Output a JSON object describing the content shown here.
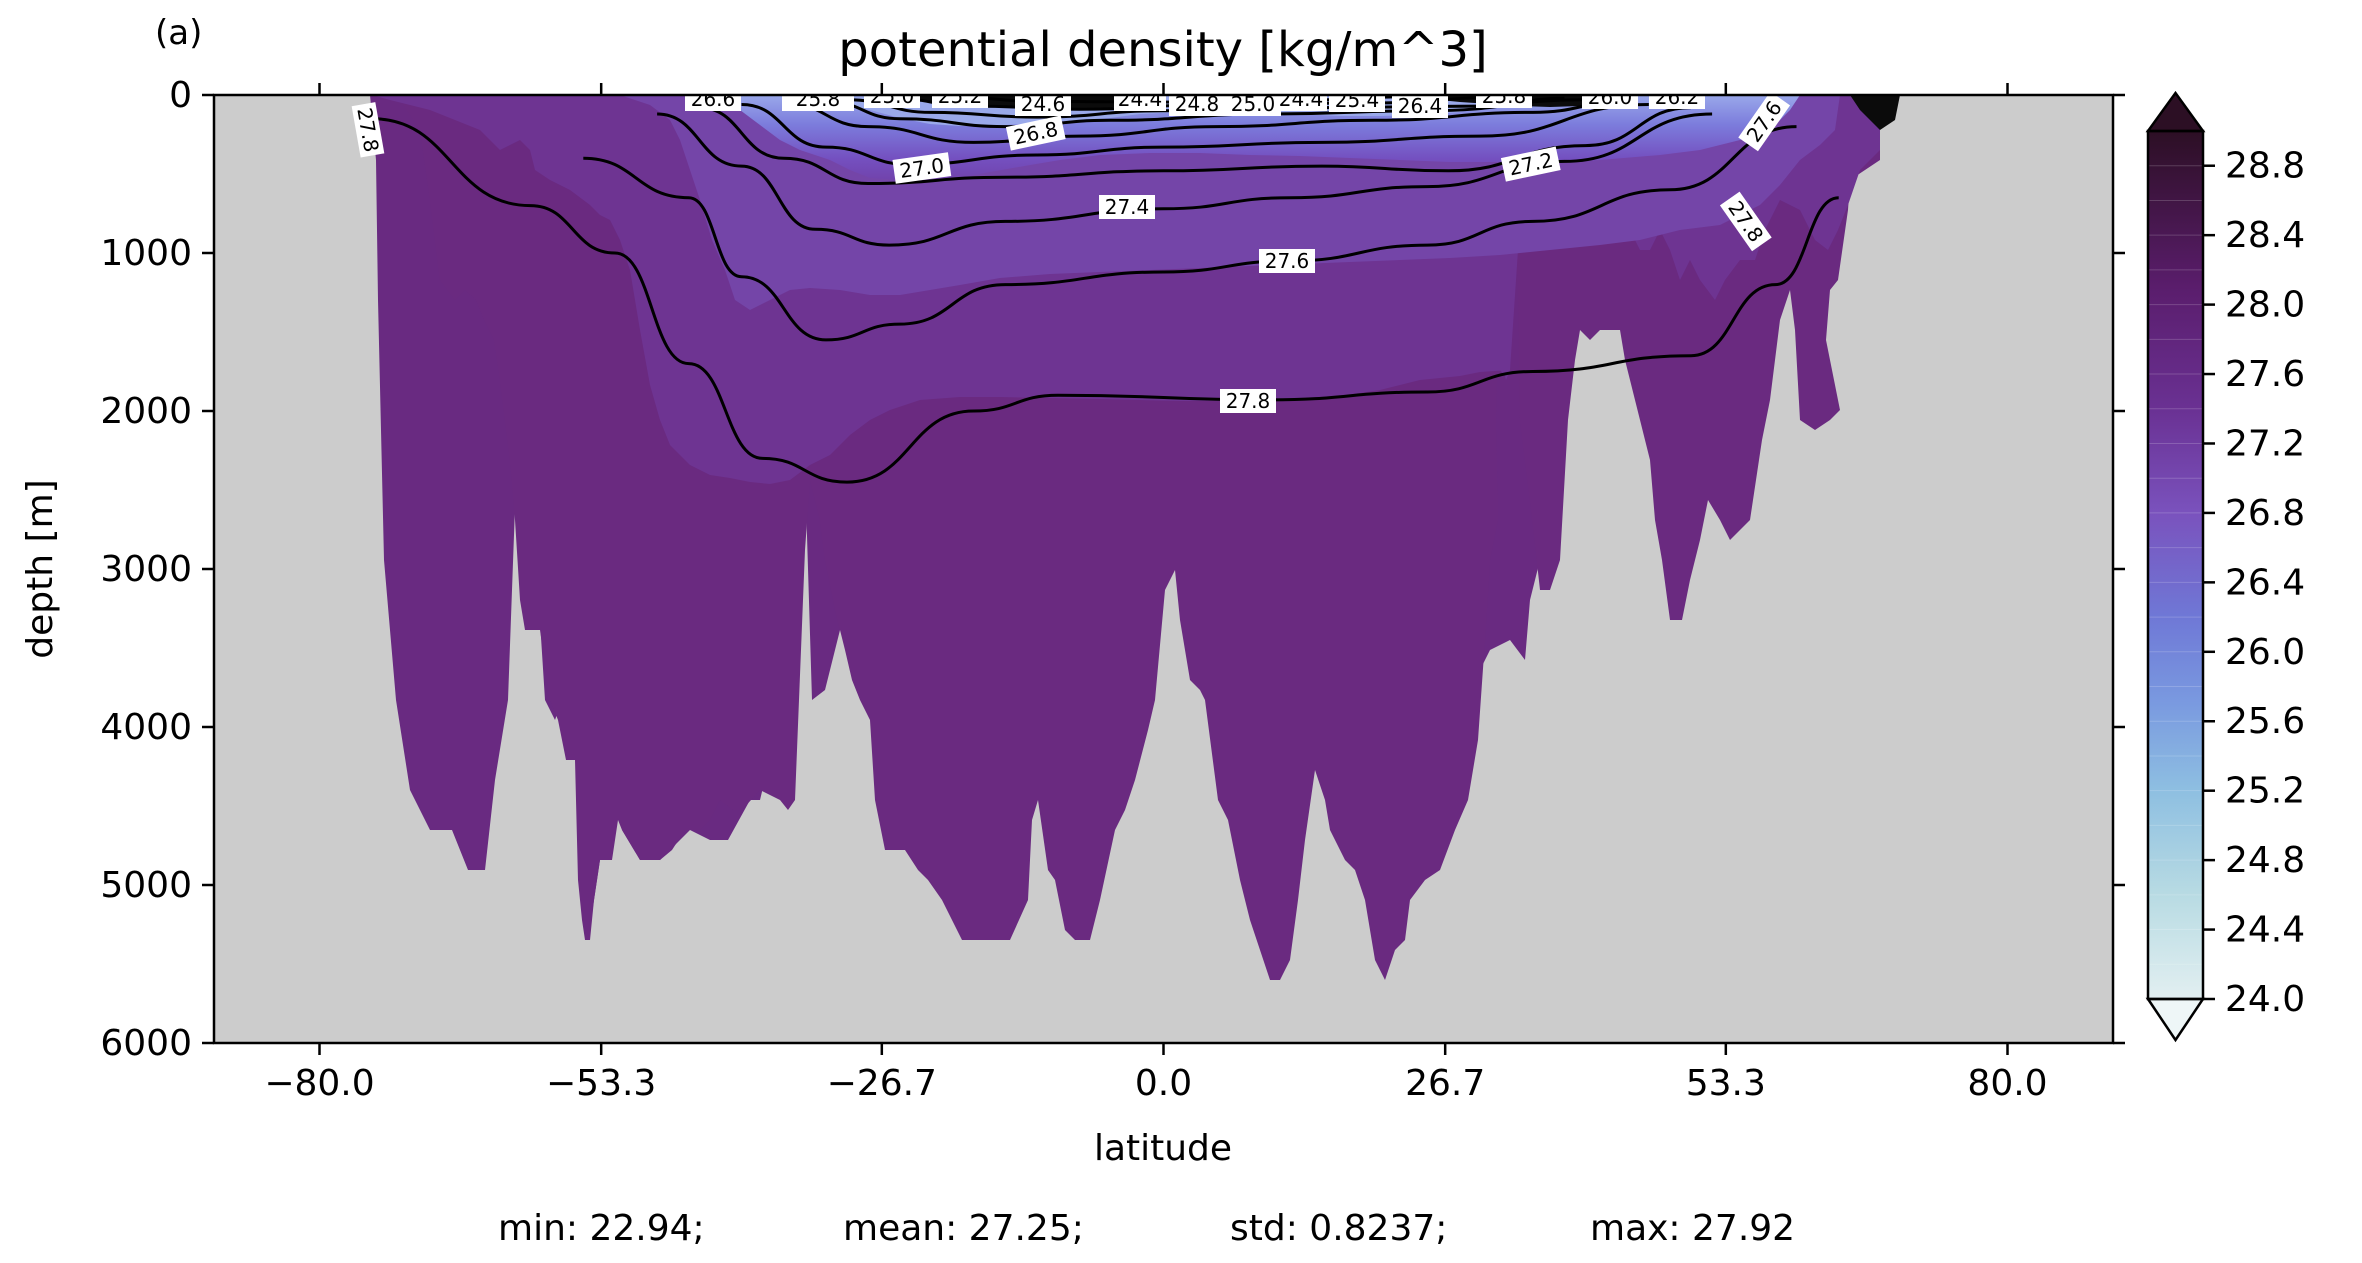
{
  "panel_label": "(a)",
  "chart_data": {
    "type": "heatmap",
    "title": "potential density [kg/m^3]",
    "xlabel": "latitude",
    "ylabel": "depth [m]",
    "xlim": [
      -90,
      90
    ],
    "ylim": [
      6000,
      0
    ],
    "x_ticks": [
      "−80.0",
      "−53.3",
      "−26.7",
      "0.0",
      "26.7",
      "53.3",
      "80.0"
    ],
    "y_ticks": [
      "0",
      "1000",
      "2000",
      "3000",
      "4000",
      "5000",
      "6000"
    ],
    "colorbar": {
      "min": 24.0,
      "max": 29.0,
      "ticks": [
        "24.0",
        "24.4",
        "24.8",
        "25.2",
        "25.6",
        "26.0",
        "26.4",
        "26.8",
        "27.2",
        "27.6",
        "28.0",
        "28.4",
        "28.8"
      ],
      "extend": "both"
    },
    "background_color": "#cccccc",
    "contour_labels": [
      "27.8",
      "26.6",
      "25.8",
      "25.0",
      "25.2",
      "24.6",
      "24.4",
      "24.8",
      "25.0",
      "24.4",
      "25.4",
      "26.4",
      "25.8",
      "26.0",
      "26.2",
      "27.6",
      "26.8",
      "27.0",
      "27.2",
      "27.4",
      "27.6",
      "27.8",
      "27.8"
    ],
    "contours": [
      {
        "level": 27.8,
        "depths": [
          {
            "lat": -75,
            "depth": 150
          },
          {
            "lat": -60,
            "depth": 700
          },
          {
            "lat": -52,
            "depth": 1000
          },
          {
            "lat": -45,
            "depth": 1700
          },
          {
            "lat": -38,
            "depth": 2300
          },
          {
            "lat": -30,
            "depth": 2450
          },
          {
            "lat": -18,
            "depth": 2000
          },
          {
            "lat": -10,
            "depth": 1900
          },
          {
            "lat": 10,
            "depth": 1930
          },
          {
            "lat": 25,
            "depth": 1880
          },
          {
            "lat": 35,
            "depth": 1750
          },
          {
            "lat": 50,
            "depth": 1650
          },
          {
            "lat": 58,
            "depth": 1200
          },
          {
            "lat": 64,
            "depth": 650
          }
        ]
      },
      {
        "level": 27.6,
        "depths": [
          {
            "lat": -55,
            "depth": 400
          },
          {
            "lat": -45,
            "depth": 650
          },
          {
            "lat": -40,
            "depth": 1150
          },
          {
            "lat": -32,
            "depth": 1550
          },
          {
            "lat": -25,
            "depth": 1450
          },
          {
            "lat": -15,
            "depth": 1200
          },
          {
            "lat": 0,
            "depth": 1120
          },
          {
            "lat": 12,
            "depth": 1050
          },
          {
            "lat": 25,
            "depth": 950
          },
          {
            "lat": 35,
            "depth": 800
          },
          {
            "lat": 48,
            "depth": 600
          },
          {
            "lat": 60,
            "depth": 200
          }
        ]
      },
      {
        "level": 27.4,
        "depths": [
          {
            "lat": -48,
            "depth": 120
          },
          {
            "lat": -40,
            "depth": 450
          },
          {
            "lat": -33,
            "depth": 850
          },
          {
            "lat": -26,
            "depth": 950
          },
          {
            "lat": -15,
            "depth": 800
          },
          {
            "lat": 0,
            "depth": 720
          },
          {
            "lat": 12,
            "depth": 650
          },
          {
            "lat": 25,
            "depth": 580
          },
          {
            "lat": 38,
            "depth": 420
          },
          {
            "lat": 52,
            "depth": 120
          }
        ]
      },
      {
        "level": 27.2,
        "depths": [
          {
            "lat": -44,
            "depth": 80
          },
          {
            "lat": -36,
            "depth": 400
          },
          {
            "lat": -28,
            "depth": 560
          },
          {
            "lat": -15,
            "depth": 520
          },
          {
            "lat": 0,
            "depth": 480
          },
          {
            "lat": 15,
            "depth": 450
          },
          {
            "lat": 27,
            "depth": 480
          },
          {
            "lat": 40,
            "depth": 320
          },
          {
            "lat": 50,
            "depth": 80
          }
        ]
      },
      {
        "level": 27.0,
        "depths": [
          {
            "lat": -40,
            "depth": 60
          },
          {
            "lat": -32,
            "depth": 330
          },
          {
            "lat": -24,
            "depth": 440
          },
          {
            "lat": -12,
            "depth": 380
          },
          {
            "lat": 0,
            "depth": 330
          },
          {
            "lat": 15,
            "depth": 300
          },
          {
            "lat": 30,
            "depth": 260
          },
          {
            "lat": 46,
            "depth": 60
          }
        ]
      },
      {
        "level": 26.8,
        "depths": [
          {
            "lat": -36,
            "depth": 50
          },
          {
            "lat": -28,
            "depth": 200
          },
          {
            "lat": -18,
            "depth": 300
          },
          {
            "lat": -8,
            "depth": 260
          },
          {
            "lat": 5,
            "depth": 200
          },
          {
            "lat": 20,
            "depth": 160
          },
          {
            "lat": 35,
            "depth": 110
          },
          {
            "lat": 44,
            "depth": 40
          }
        ]
      },
      {
        "level": 26.4,
        "depths": [
          {
            "lat": -32,
            "depth": 40
          },
          {
            "lat": -25,
            "depth": 150
          },
          {
            "lat": -15,
            "depth": 200
          },
          {
            "lat": -5,
            "depth": 160
          },
          {
            "lat": 10,
            "depth": 120
          },
          {
            "lat": 25,
            "depth": 100
          },
          {
            "lat": 40,
            "depth": 30
          }
        ]
      },
      {
        "level": 26.0,
        "depths": [
          {
            "lat": -30,
            "depth": 30
          },
          {
            "lat": -22,
            "depth": 110
          },
          {
            "lat": -12,
            "depth": 140
          },
          {
            "lat": 0,
            "depth": 100
          },
          {
            "lat": 15,
            "depth": 80
          },
          {
            "lat": 30,
            "depth": 70
          },
          {
            "lat": 38,
            "depth": 20
          }
        ]
      },
      {
        "level": 25.4,
        "depths": [
          {
            "lat": -26,
            "depth": 20
          },
          {
            "lat": -18,
            "depth": 70
          },
          {
            "lat": -8,
            "depth": 90
          },
          {
            "lat": 5,
            "depth": 60
          },
          {
            "lat": 20,
            "depth": 50
          },
          {
            "lat": 32,
            "depth": 15
          }
        ]
      },
      {
        "level": 24.8,
        "depths": [
          {
            "lat": -20,
            "depth": 10
          },
          {
            "lat": -12,
            "depth": 40
          },
          {
            "lat": 0,
            "depth": 45
          },
          {
            "lat": 12,
            "depth": 35
          },
          {
            "lat": 24,
            "depth": 10
          }
        ]
      }
    ],
    "summary": {
      "min": "min: 22.94;",
      "mean": "mean: 27.25;",
      "std": "std: 0.8237;",
      "max": "max: 27.92"
    }
  }
}
